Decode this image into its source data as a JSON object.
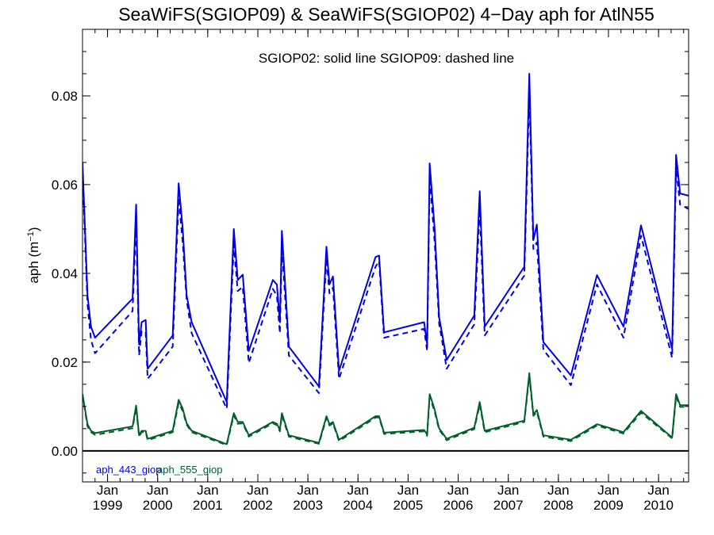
{
  "chart_data": {
    "type": "line",
    "title": "SeaWiFS(SGIOP09) & SeaWiFS(SGIOP02) 4−Day aph for AtlN55",
    "note": "SGIOP02: solid line   SGIOP09: dashed line",
    "ylabel": "aph (m",
    "ylabel_sup": "−1",
    "ylabel_close": ")",
    "ylim": [
      -0.007,
      0.095
    ],
    "xlim": [
      1998.5,
      2010.6
    ],
    "yticks": [
      0.0,
      0.02,
      0.04,
      0.06,
      0.08
    ],
    "ytick_labels": [
      "0.00",
      "0.02",
      "0.04",
      "0.06",
      "0.08"
    ],
    "xticks": [
      {
        "month": "Jan",
        "year": "1999",
        "x": 1999.0
      },
      {
        "month": "Jan",
        "year": "2000",
        "x": 2000.0
      },
      {
        "month": "Jan",
        "year": "2001",
        "x": 2001.0
      },
      {
        "month": "Jan",
        "year": "2002",
        "x": 2002.0
      },
      {
        "month": "Jan",
        "year": "2003",
        "x": 2003.0
      },
      {
        "month": "Jan",
        "year": "2004",
        "x": 2004.0
      },
      {
        "month": "Jan",
        "year": "2005",
        "x": 2005.0
      },
      {
        "month": "Jan",
        "year": "2006",
        "x": 2006.0
      },
      {
        "month": "Jan",
        "year": "2007",
        "x": 2007.0
      },
      {
        "month": "Jan",
        "year": "2008",
        "x": 2008.0
      },
      {
        "month": "Jan",
        "year": "2009",
        "x": 2009.0
      },
      {
        "month": "Jan",
        "year": "2010",
        "x": 2010.0
      }
    ],
    "zero_line": 0.0,
    "grid": false,
    "legend_position": "bottom-left",
    "colors": {
      "aph_443": "#0000e6",
      "aph_555": "#00602c"
    },
    "series": [
      {
        "name": "aph_443_giop",
        "color": "#0000e6",
        "solid": [
          [
            1998.5,
            0.065
          ],
          [
            1998.6,
            0.035
          ],
          [
            1998.67,
            0.028
          ],
          [
            1998.75,
            0.0255
          ],
          [
            1999.5,
            0.0343
          ],
          [
            1999.57,
            0.0555
          ],
          [
            1999.63,
            0.024
          ],
          [
            1999.68,
            0.029
          ],
          [
            1999.76,
            0.0295
          ],
          [
            1999.8,
            0.0185
          ],
          [
            2000.3,
            0.026
          ],
          [
            2000.42,
            0.0603
          ],
          [
            2000.5,
            0.05
          ],
          [
            2000.58,
            0.035
          ],
          [
            2000.68,
            0.029
          ],
          [
            2001.38,
            0.011
          ],
          [
            2001.52,
            0.05
          ],
          [
            2001.6,
            0.0385
          ],
          [
            2001.7,
            0.0397
          ],
          [
            2001.82,
            0.0225
          ],
          [
            2002.3,
            0.0385
          ],
          [
            2002.38,
            0.0375
          ],
          [
            2002.44,
            0.029
          ],
          [
            2002.48,
            0.0496
          ],
          [
            2002.62,
            0.0235
          ],
          [
            2003.22,
            0.0145
          ],
          [
            2003.37,
            0.046
          ],
          [
            2003.43,
            0.0375
          ],
          [
            2003.5,
            0.0393
          ],
          [
            2003.62,
            0.018
          ],
          [
            2004.35,
            0.0437
          ],
          [
            2004.42,
            0.044
          ],
          [
            2004.52,
            0.0267
          ],
          [
            2005.32,
            0.029
          ],
          [
            2005.38,
            0.024
          ],
          [
            2005.43,
            0.0648
          ],
          [
            2005.53,
            0.05
          ],
          [
            2005.62,
            0.03
          ],
          [
            2005.67,
            0.027
          ],
          [
            2005.77,
            0.0205
          ],
          [
            2006.32,
            0.0305
          ],
          [
            2006.43,
            0.0585
          ],
          [
            2006.53,
            0.028
          ],
          [
            2007.32,
            0.0415
          ],
          [
            2007.42,
            0.085
          ],
          [
            2007.5,
            0.0475
          ],
          [
            2007.57,
            0.051
          ],
          [
            2007.7,
            0.0245
          ],
          [
            2008.25,
            0.017
          ],
          [
            2008.77,
            0.0396
          ],
          [
            2009.3,
            0.028
          ],
          [
            2009.65,
            0.0508
          ],
          [
            2010.27,
            0.023
          ],
          [
            2010.35,
            0.0667
          ],
          [
            2010.43,
            0.058
          ],
          [
            2010.6,
            0.0575
          ]
        ],
        "dashed": [
          [
            1998.5,
            0.063
          ],
          [
            1998.6,
            0.033
          ],
          [
            1998.67,
            0.025
          ],
          [
            1998.75,
            0.022
          ],
          [
            1999.5,
            0.0315
          ],
          [
            1999.57,
            0.052
          ],
          [
            1999.63,
            0.0215
          ],
          [
            1999.68,
            0.027
          ],
          [
            1999.76,
            0.0268
          ],
          [
            1999.8,
            0.0162
          ],
          [
            2000.3,
            0.0235
          ],
          [
            2000.42,
            0.057
          ],
          [
            2000.5,
            0.047
          ],
          [
            2000.58,
            0.034
          ],
          [
            2000.68,
            0.0265
          ],
          [
            2001.38,
            0.0095
          ],
          [
            2001.52,
            0.0465
          ],
          [
            2001.6,
            0.036
          ],
          [
            2001.7,
            0.037
          ],
          [
            2001.82,
            0.0198
          ],
          [
            2002.3,
            0.0365
          ],
          [
            2002.38,
            0.035
          ],
          [
            2002.44,
            0.0265
          ],
          [
            2002.48,
            0.046
          ],
          [
            2002.62,
            0.0215
          ],
          [
            2003.22,
            0.013
          ],
          [
            2003.37,
            0.0435
          ],
          [
            2003.43,
            0.0355
          ],
          [
            2003.5,
            0.0368
          ],
          [
            2003.62,
            0.0162
          ],
          [
            2004.35,
            0.0415
          ],
          [
            2004.42,
            0.0428
          ],
          [
            2004.52,
            0.0255
          ],
          [
            2005.32,
            0.0275
          ],
          [
            2005.38,
            0.0225
          ],
          [
            2005.43,
            0.0615
          ],
          [
            2005.53,
            0.047
          ],
          [
            2005.62,
            0.0285
          ],
          [
            2005.67,
            0.0255
          ],
          [
            2005.77,
            0.0185
          ],
          [
            2006.32,
            0.0285
          ],
          [
            2006.43,
            0.0545
          ],
          [
            2006.53,
            0.026
          ],
          [
            2007.32,
            0.0395
          ],
          [
            2007.42,
            0.081
          ],
          [
            2007.5,
            0.0455
          ],
          [
            2007.57,
            0.047
          ],
          [
            2007.7,
            0.0228
          ],
          [
            2008.25,
            0.0148
          ],
          [
            2008.77,
            0.0375
          ],
          [
            2009.3,
            0.0255
          ],
          [
            2009.65,
            0.0485
          ],
          [
            2010.27,
            0.021
          ],
          [
            2010.35,
            0.0638
          ],
          [
            2010.43,
            0.0555
          ],
          [
            2010.6,
            0.0545
          ]
        ]
      },
      {
        "name": "aph_555_giop",
        "color": "#00602c",
        "solid": [
          [
            1998.5,
            0.0128
          ],
          [
            1998.6,
            0.006
          ],
          [
            1998.67,
            0.0045
          ],
          [
            1998.75,
            0.004
          ],
          [
            1999.5,
            0.0055
          ],
          [
            1999.57,
            0.0102
          ],
          [
            1999.63,
            0.0035
          ],
          [
            1999.68,
            0.0045
          ],
          [
            1999.76,
            0.0045
          ],
          [
            1999.8,
            0.0027
          ],
          [
            2000.3,
            0.0045
          ],
          [
            2000.42,
            0.0115
          ],
          [
            2000.5,
            0.0095
          ],
          [
            2000.58,
            0.0062
          ],
          [
            2000.68,
            0.0045
          ],
          [
            2001.38,
            0.0015
          ],
          [
            2001.52,
            0.0085
          ],
          [
            2001.6,
            0.0065
          ],
          [
            2001.7,
            0.0065
          ],
          [
            2001.82,
            0.0035
          ],
          [
            2002.3,
            0.0065
          ],
          [
            2002.38,
            0.0061
          ],
          [
            2002.44,
            0.0047
          ],
          [
            2002.48,
            0.0085
          ],
          [
            2002.62,
            0.0035
          ],
          [
            2003.22,
            0.0018
          ],
          [
            2003.37,
            0.0078
          ],
          [
            2003.43,
            0.006
          ],
          [
            2003.5,
            0.0065
          ],
          [
            2003.62,
            0.0025
          ],
          [
            2004.35,
            0.0078
          ],
          [
            2004.42,
            0.0078
          ],
          [
            2004.52,
            0.0041
          ],
          [
            2005.32,
            0.0047
          ],
          [
            2005.38,
            0.0037
          ],
          [
            2005.43,
            0.0128
          ],
          [
            2005.53,
            0.0093
          ],
          [
            2005.62,
            0.005
          ],
          [
            2005.67,
            0.0043
          ],
          [
            2005.77,
            0.0027
          ],
          [
            2006.32,
            0.0052
          ],
          [
            2006.43,
            0.011
          ],
          [
            2006.53,
            0.0045
          ],
          [
            2007.32,
            0.0068
          ],
          [
            2007.42,
            0.0175
          ],
          [
            2007.5,
            0.0082
          ],
          [
            2007.57,
            0.0092
          ],
          [
            2007.7,
            0.0035
          ],
          [
            2008.25,
            0.0025
          ],
          [
            2008.77,
            0.006
          ],
          [
            2009.3,
            0.0042
          ],
          [
            2009.65,
            0.009
          ],
          [
            2010.27,
            0.003
          ],
          [
            2010.35,
            0.0128
          ],
          [
            2010.43,
            0.0103
          ],
          [
            2010.6,
            0.0103
          ]
        ],
        "dashed": [
          [
            1998.5,
            0.0125
          ],
          [
            1998.6,
            0.0055
          ],
          [
            1998.67,
            0.0042
          ],
          [
            1998.75,
            0.0036
          ],
          [
            1999.5,
            0.0051
          ],
          [
            1999.57,
            0.0098
          ],
          [
            1999.63,
            0.0032
          ],
          [
            1999.68,
            0.0042
          ],
          [
            1999.76,
            0.0042
          ],
          [
            1999.8,
            0.0024
          ],
          [
            2000.3,
            0.0042
          ],
          [
            2000.42,
            0.0108
          ],
          [
            2000.5,
            0.009
          ],
          [
            2000.58,
            0.0059
          ],
          [
            2000.68,
            0.0042
          ],
          [
            2001.38,
            0.0013
          ],
          [
            2001.52,
            0.008
          ],
          [
            2001.6,
            0.0061
          ],
          [
            2001.7,
            0.0062
          ],
          [
            2001.82,
            0.0032
          ],
          [
            2002.3,
            0.0062
          ],
          [
            2002.38,
            0.0058
          ],
          [
            2002.44,
            0.0044
          ],
          [
            2002.48,
            0.008
          ],
          [
            2002.62,
            0.0032
          ],
          [
            2003.22,
            0.0016
          ],
          [
            2003.37,
            0.0074
          ],
          [
            2003.43,
            0.0057
          ],
          [
            2003.5,
            0.0062
          ],
          [
            2003.62,
            0.0022
          ],
          [
            2004.35,
            0.0075
          ],
          [
            2004.42,
            0.0075
          ],
          [
            2004.52,
            0.0038
          ],
          [
            2005.32,
            0.0044
          ],
          [
            2005.38,
            0.0034
          ],
          [
            2005.43,
            0.0122
          ],
          [
            2005.53,
            0.0088
          ],
          [
            2005.62,
            0.0047
          ],
          [
            2005.67,
            0.004
          ],
          [
            2005.77,
            0.0024
          ],
          [
            2006.32,
            0.0049
          ],
          [
            2006.43,
            0.0104
          ],
          [
            2006.53,
            0.0042
          ],
          [
            2007.32,
            0.0065
          ],
          [
            2007.42,
            0.0168
          ],
          [
            2007.5,
            0.0079
          ],
          [
            2007.57,
            0.0088
          ],
          [
            2007.7,
            0.0032
          ],
          [
            2008.25,
            0.0022
          ],
          [
            2008.77,
            0.0057
          ],
          [
            2009.3,
            0.0039
          ],
          [
            2009.65,
            0.0086
          ],
          [
            2010.27,
            0.0028
          ],
          [
            2010.35,
            0.0122
          ],
          [
            2010.43,
            0.0099
          ],
          [
            2010.6,
            0.0099
          ]
        ]
      }
    ]
  }
}
